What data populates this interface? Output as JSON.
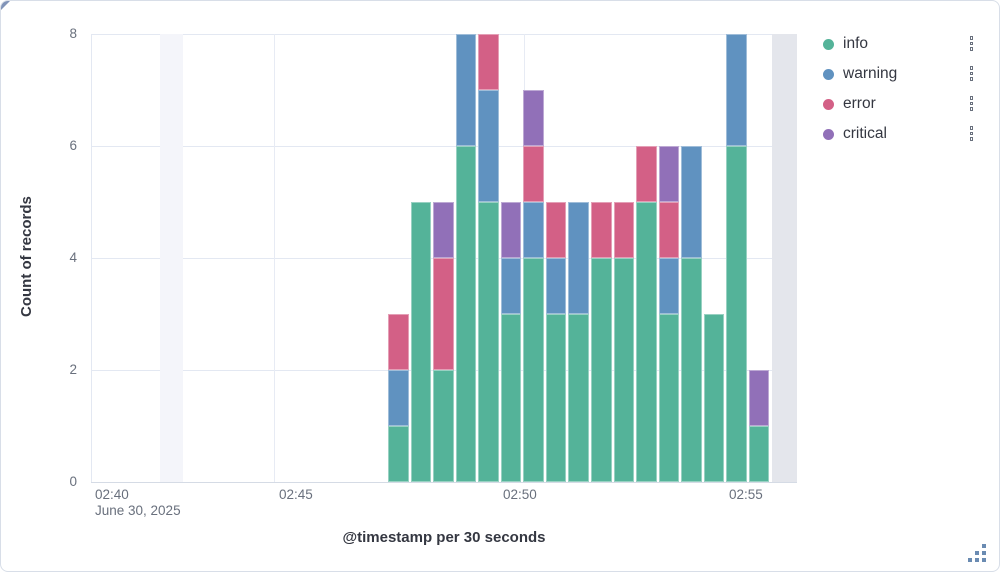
{
  "axes": {
    "y": {
      "title": "Count of records",
      "ticks": [
        "8",
        "6",
        "4",
        "2",
        "0"
      ]
    },
    "x": {
      "title": "@timestamp per 30 seconds",
      "ticks": [
        "02:40",
        "02:45",
        "02:50",
        "02:55"
      ],
      "secondary_label": "June 30, 2025"
    }
  },
  "legend": {
    "position": "right",
    "items": [
      {
        "label": "info",
        "color": "#54B399"
      },
      {
        "label": "warning",
        "color": "#6092C0"
      },
      {
        "label": "error",
        "color": "#D36086"
      },
      {
        "label": "critical",
        "color": "#9170B8"
      }
    ]
  },
  "chart_data": {
    "type": "bar",
    "stacked": true,
    "title": "",
    "xlabel": "@timestamp per 30 seconds",
    "ylabel": "Count of records",
    "ylim": [
      0,
      8
    ],
    "grid": true,
    "legend_position": "right",
    "bucket_interval": "30 seconds",
    "date": "June 30, 2025",
    "categories": [
      "02:47:30",
      "02:48:00",
      "02:48:30",
      "02:49:00",
      "02:49:30",
      "02:50:00",
      "02:50:30",
      "02:51:00",
      "02:51:30",
      "02:52:00",
      "02:52:30",
      "02:53:00",
      "02:53:30",
      "02:54:00",
      "02:54:30",
      "02:55:00",
      "02:55:30"
    ],
    "series": [
      {
        "name": "info",
        "color": "#54B399",
        "values": [
          1,
          5,
          2,
          6,
          5,
          3,
          4,
          3,
          3,
          4,
          4,
          5,
          3,
          4,
          3,
          6,
          1
        ]
      },
      {
        "name": "warning",
        "color": "#6092C0",
        "values": [
          1,
          0,
          0,
          2,
          2,
          1,
          1,
          1,
          2,
          0,
          0,
          0,
          1,
          2,
          0,
          2,
          0
        ]
      },
      {
        "name": "error",
        "color": "#D36086",
        "values": [
          1,
          0,
          2,
          0,
          1,
          0,
          1,
          1,
          0,
          1,
          1,
          1,
          1,
          0,
          0,
          0,
          0
        ]
      },
      {
        "name": "critical",
        "color": "#9170B8",
        "values": [
          0,
          0,
          1,
          0,
          0,
          1,
          1,
          0,
          0,
          0,
          0,
          0,
          1,
          0,
          0,
          0,
          1
        ]
      }
    ]
  }
}
